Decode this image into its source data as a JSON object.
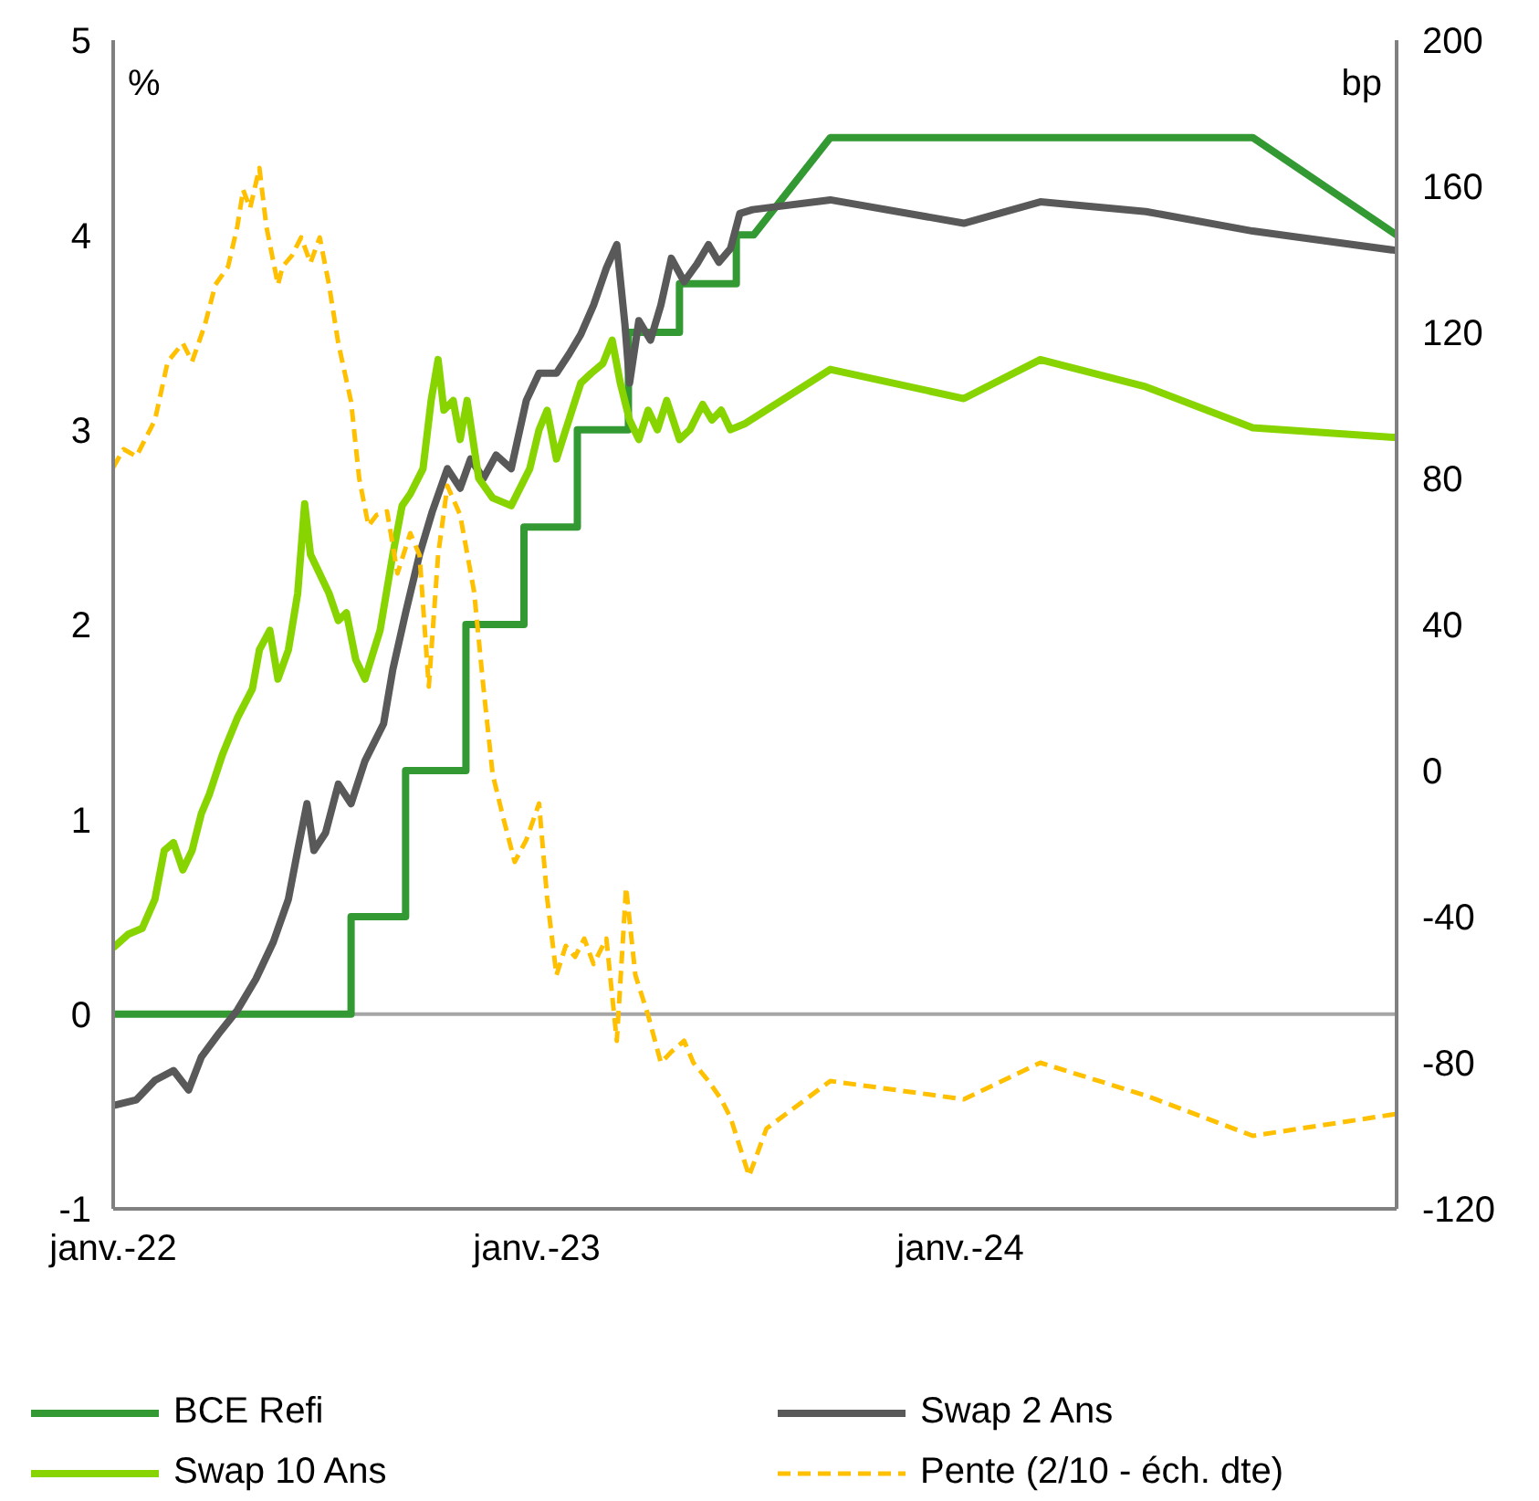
{
  "chart_data": {
    "type": "line",
    "ylabel": "%",
    "y2label": "bp",
    "xlim": [
      "2022-01-01",
      "2025-01-11"
    ],
    "xticks": [
      {
        "value": "2022-01-01",
        "label": "janv.-22"
      },
      {
        "value": "2023-01-01",
        "label": "janv.-23"
      },
      {
        "value": "2024-01-01",
        "label": "janv.-24"
      }
    ],
    "ylim": [
      -1,
      5
    ],
    "yticks": [
      -1,
      0,
      1,
      2,
      3,
      4,
      5
    ],
    "y2lim": [
      -120,
      200
    ],
    "y2ticks": [
      -120,
      -80,
      -40,
      0,
      40,
      80,
      120,
      160,
      200
    ],
    "grid": false,
    "legend": "bottom",
    "marker": "none",
    "ref_lines": [
      {
        "axis": "y",
        "value": 0,
        "color": "#a6a6a6"
      }
    ],
    "series": [
      {
        "name": "BCE Refi",
        "color": "#339933",
        "line_style": "solid",
        "x": [
          "2022-01-01",
          "2022-07-25",
          "2022-07-25",
          "2022-09-10",
          "2022-09-10",
          "2022-11-01",
          "2022-11-01",
          "2022-12-21",
          "2022-12-21",
          "2023-02-05",
          "2023-02-05",
          "2023-03-21",
          "2023-03-21",
          "2023-05-04",
          "2023-05-04",
          "2023-06-22",
          "2023-06-22",
          "2023-07-07",
          "2023-09-11",
          "2024-09-09",
          "2025-01-11"
        ],
        "values": [
          0,
          0,
          0.5,
          0.5,
          1.25,
          1.25,
          2.0,
          2.0,
          2.5,
          2.5,
          3.0,
          3.0,
          3.5,
          3.5,
          3.75,
          3.75,
          4.0,
          4.0,
          4.5,
          4.5,
          4.0
        ]
      },
      {
        "name": "Swap 2 Ans",
        "color": "#595959",
        "line_style": "solid",
        "x": [
          "2022-01-01",
          "2022-01-21",
          "2022-02-06",
          "2022-02-22",
          "2022-03-07",
          "2022-03-18",
          "2022-04-02",
          "2022-04-18",
          "2022-05-04",
          "2022-05-19",
          "2022-06-01",
          "2022-06-09",
          "2022-06-17",
          "2022-06-23",
          "2022-07-03",
          "2022-07-14",
          "2022-07-25",
          "2022-08-06",
          "2022-08-22",
          "2022-08-30",
          "2022-09-10",
          "2022-09-22",
          "2022-10-03",
          "2022-10-16",
          "2022-10-27",
          "2022-11-05",
          "2022-11-16",
          "2022-11-27",
          "2022-12-10",
          "2022-12-23",
          "2023-01-03",
          "2023-01-18",
          "2023-01-29",
          "2023-02-08",
          "2023-02-19",
          "2023-03-02",
          "2023-03-11",
          "2023-03-18",
          "2023-03-22",
          "2023-03-30",
          "2023-04-09",
          "2023-04-18",
          "2023-04-27",
          "2023-05-08",
          "2023-05-19",
          "2023-05-29",
          "2023-06-07",
          "2023-06-17",
          "2023-06-25",
          "2023-07-06",
          "2023-09-11",
          "2024-01-04",
          "2024-03-10",
          "2024-06-09",
          "2024-09-09",
          "2025-01-11"
        ],
        "values": [
          -0.47,
          -0.44,
          -0.34,
          -0.29,
          -0.39,
          -0.22,
          -0.1,
          0.02,
          0.18,
          0.37,
          0.59,
          0.84,
          1.08,
          0.84,
          0.93,
          1.18,
          1.08,
          1.3,
          1.49,
          1.77,
          2.06,
          2.36,
          2.58,
          2.8,
          2.7,
          2.85,
          2.75,
          2.87,
          2.8,
          3.15,
          3.29,
          3.29,
          3.39,
          3.49,
          3.64,
          3.83,
          3.95,
          3.54,
          3.24,
          3.56,
          3.46,
          3.64,
          3.88,
          3.76,
          3.85,
          3.95,
          3.86,
          3.93,
          4.11,
          4.13,
          4.18,
          4.06,
          4.17,
          4.12,
          4.02,
          3.92
        ]
      },
      {
        "name": "Swap 10 Ans",
        "color": "#88d400",
        "line_style": "solid",
        "x": [
          "2022-01-01",
          "2022-01-14",
          "2022-01-26",
          "2022-02-06",
          "2022-02-14",
          "2022-02-22",
          "2022-03-02",
          "2022-03-10",
          "2022-03-18",
          "2022-03-25",
          "2022-04-05",
          "2022-04-18",
          "2022-05-01",
          "2022-05-07",
          "2022-05-16",
          "2022-05-23",
          "2022-06-01",
          "2022-06-09",
          "2022-06-15",
          "2022-06-20",
          "2022-06-28",
          "2022-07-06",
          "2022-07-14",
          "2022-07-21",
          "2022-07-29",
          "2022-08-06",
          "2022-08-19",
          "2022-08-30",
          "2022-09-07",
          "2022-09-14",
          "2022-09-25",
          "2022-10-02",
          "2022-10-08",
          "2022-10-13",
          "2022-10-21",
          "2022-10-27",
          "2022-11-02",
          "2022-11-12",
          "2022-11-24",
          "2022-12-10",
          "2022-12-26",
          "2023-01-03",
          "2023-01-10",
          "2023-01-18",
          "2023-01-26",
          "2023-02-08",
          "2023-02-17",
          "2023-02-27",
          "2023-03-07",
          "2023-03-14",
          "2023-03-22",
          "2023-03-30",
          "2023-04-07",
          "2023-04-15",
          "2023-04-23",
          "2023-05-04",
          "2023-05-13",
          "2023-05-24",
          "2023-06-01",
          "2023-06-09",
          "2023-06-17",
          "2023-06-29",
          "2023-09-11",
          "2024-01-04",
          "2024-03-10",
          "2024-06-09",
          "2024-09-09",
          "2025-01-11"
        ],
        "values": [
          0.34,
          0.41,
          0.44,
          0.59,
          0.84,
          0.88,
          0.74,
          0.84,
          1.03,
          1.13,
          1.33,
          1.52,
          1.67,
          1.87,
          1.97,
          1.72,
          1.87,
          2.16,
          2.62,
          2.36,
          2.26,
          2.16,
          2.02,
          2.06,
          1.82,
          1.72,
          1.97,
          2.36,
          2.61,
          2.67,
          2.8,
          3.15,
          3.36,
          3.1,
          3.15,
          2.95,
          3.15,
          2.75,
          2.65,
          2.61,
          2.8,
          3.0,
          3.1,
          2.85,
          3.0,
          3.24,
          3.29,
          3.34,
          3.46,
          3.24,
          3.05,
          2.95,
          3.1,
          3.0,
          3.15,
          2.95,
          3.0,
          3.13,
          3.05,
          3.1,
          3.0,
          3.03,
          3.31,
          3.16,
          3.36,
          3.22,
          3.01,
          2.96
        ]
      },
      {
        "name": "Pente (2/10 - éch. dte)",
        "color": "#ffc000",
        "axis": "y2",
        "line_style": "dashed",
        "x": [
          "2022-01-01",
          "2022-01-10",
          "2022-01-21",
          "2022-02-06",
          "2022-02-17",
          "2022-03-02",
          "2022-03-10",
          "2022-03-21",
          "2022-03-30",
          "2022-04-10",
          "2022-04-18",
          "2022-04-23",
          "2022-04-29",
          "2022-05-07",
          "2022-05-13",
          "2022-05-23",
          "2022-05-27",
          "2022-06-04",
          "2022-06-12",
          "2022-06-20",
          "2022-06-28",
          "2022-07-06",
          "2022-07-14",
          "2022-07-25",
          "2022-08-01",
          "2022-08-09",
          "2022-08-16",
          "2022-08-25",
          "2022-09-03",
          "2022-09-14",
          "2022-09-22",
          "2022-09-30",
          "2022-10-08",
          "2022-10-16",
          "2022-10-27",
          "2022-11-08",
          "2022-11-16",
          "2022-11-24",
          "2022-12-04",
          "2022-12-13",
          "2022-12-23",
          "2023-01-03",
          "2023-01-10",
          "2023-01-18",
          "2023-01-26",
          "2023-02-03",
          "2023-02-11",
          "2023-02-19",
          "2023-03-02",
          "2023-03-11",
          "2023-03-19",
          "2023-03-27",
          "2023-04-07",
          "2023-04-18",
          "2023-04-27",
          "2023-05-08",
          "2023-05-16",
          "2023-05-29",
          "2023-06-09",
          "2023-06-17",
          "2023-06-25",
          "2023-07-03",
          "2023-07-18",
          "2023-09-11",
          "2024-01-04",
          "2024-03-10",
          "2024-06-09",
          "2024-09-09",
          "2025-01-11"
        ],
        "values": [
          83,
          88,
          86,
          96,
          112,
          117,
          112,
          122,
          133,
          138,
          149,
          159,
          154,
          165,
          149,
          133,
          138,
          141,
          146,
          139,
          146,
          133,
          117,
          101,
          80,
          67,
          70,
          71,
          54,
          65,
          59,
          23,
          59,
          78,
          70,
          49,
          23,
          -1,
          -14,
          -25,
          -19,
          -9,
          -35,
          -56,
          -48,
          -51,
          -46,
          -53,
          -46,
          -74,
          -32,
          -56,
          -67,
          -80,
          -77,
          -74,
          -80,
          -85,
          -90,
          -95,
          -103,
          -111,
          -98,
          -85,
          -90,
          -80,
          -89,
          -100,
          -94
        ]
      }
    ]
  }
}
